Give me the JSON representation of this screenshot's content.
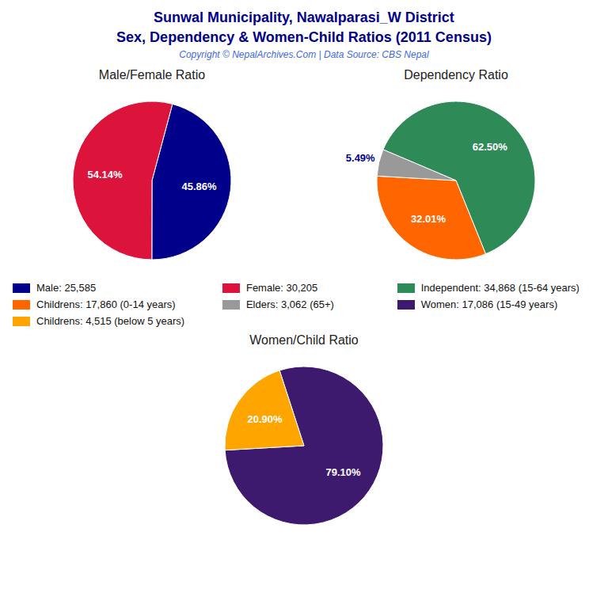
{
  "title": "Sunwal Municipality, Nawalparasi_W District",
  "subtitle": "Sex, Dependency & Women-Child Ratios (2011 Census)",
  "annotations": [
    "Copyright © NepalArchives.Com | Data Source: CBS Nepal"
  ],
  "chart_data": [
    {
      "type": "pie",
      "title": "Male/Female Ratio",
      "categories": [
        "Male: 25,585",
        "Female: 30,205"
      ],
      "values": [
        45.86,
        54.14
      ],
      "value_labels": [
        "45.86%",
        "54.14%"
      ],
      "colors": [
        "#00008B",
        "#DC143C"
      ],
      "data_labels": true
    },
    {
      "type": "pie",
      "title": "Dependency Ratio",
      "categories": [
        "Independent: 34,868 (15-64 years)",
        "Childrens: 17,860 (0-14 years)",
        "Elders: 3,062 (65+)"
      ],
      "values": [
        62.5,
        32.01,
        5.49
      ],
      "value_labels": [
        "62.50%",
        "32.01%",
        "5.49%"
      ],
      "colors": [
        "#2E8B57",
        "#FF6600",
        "#999999"
      ],
      "data_labels": true
    },
    {
      "type": "pie",
      "title": "Women/Child Ratio",
      "categories": [
        "Women: 17,086 (15-49 years)",
        "Childrens: 4,515 (below 5 years)"
      ],
      "values": [
        79.1,
        20.9
      ],
      "value_labels": [
        "79.10%",
        "20.90%"
      ],
      "colors": [
        "#3D1A6E",
        "#FFA500"
      ],
      "data_labels": true
    }
  ]
}
